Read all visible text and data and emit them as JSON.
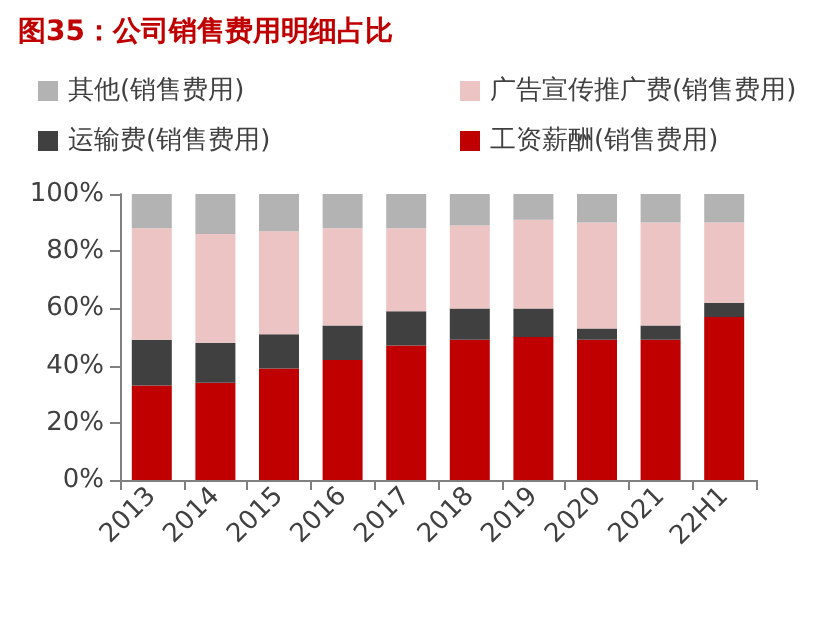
{
  "chart_data": {
    "type": "bar",
    "title": "图35：公司销售费用明细占比",
    "categories": [
      "2013",
      "2014",
      "2015",
      "2016",
      "2017",
      "2018",
      "2019",
      "2020",
      "2021",
      "22H1"
    ],
    "stacked": true,
    "series": [
      {
        "name": "工资薪酬(销售费用)",
        "color": "#c00000",
        "values": [
          33,
          34,
          39,
          42,
          47,
          49,
          50,
          49,
          49,
          57
        ]
      },
      {
        "name": "运输费(销售费用)",
        "color": "#404040",
        "values": [
          16,
          14,
          12,
          12,
          12,
          11,
          10,
          4,
          5,
          5
        ]
      },
      {
        "name": "广告宣传推广费(销售费用)",
        "color": "#ecc4c4",
        "values": [
          39,
          38,
          36,
          34,
          29,
          29,
          31,
          37,
          36,
          28
        ]
      },
      {
        "name": "其他(销售费用)",
        "color": "#b3b3b3",
        "values": [
          12,
          14,
          13,
          12,
          12,
          11,
          9,
          10,
          10,
          10
        ]
      }
    ],
    "ylim": [
      0,
      100
    ],
    "yticks": [
      {
        "value": 0,
        "label": "0%"
      },
      {
        "value": 20,
        "label": "20%"
      },
      {
        "value": 40,
        "label": "40%"
      },
      {
        "value": 60,
        "label": "60%"
      },
      {
        "value": 80,
        "label": "80%"
      },
      {
        "value": 100,
        "label": "100%"
      }
    ],
    "grid": false,
    "legend": "top"
  }
}
